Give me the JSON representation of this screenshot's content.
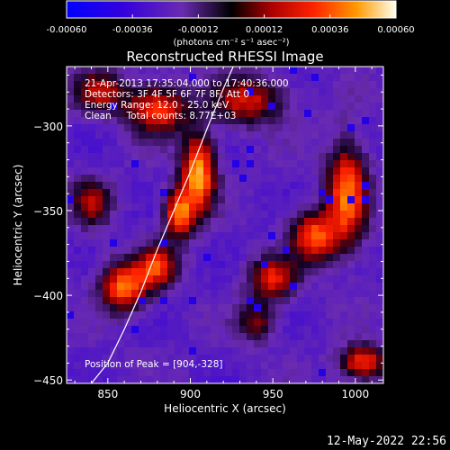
{
  "chart_data": {
    "type": "heatmap",
    "title": "Reconstructed RHESSI Image",
    "xlabel": "Heliocentric X (arcsec)",
    "ylabel": "Heliocentric Y (arcsec)",
    "xlim": [
      825,
      1017
    ],
    "ylim": [
      -452,
      -265
    ],
    "x_ticks": [
      850,
      900,
      950,
      1000
    ],
    "y_ticks": [
      -450,
      -400,
      -350,
      -300
    ],
    "colorbar": {
      "range": [
        -0.0006,
        0.0006
      ],
      "tick_values": [
        -0.0006,
        -0.00036,
        -0.00012,
        0.00012,
        0.00036,
        0.0006
      ],
      "tick_labels": [
        "-0.00060",
        "-0.00036",
        "-0.00012",
        "0.00012",
        "0.00036",
        "0.00060"
      ],
      "unit_label": "(photons cm⁻² s⁻¹ asec⁻²)"
    },
    "annotations": [
      "21-Apr-2013 17:35:04.000 to 17:40:36.000",
      "Detectors: 3F 4F 5F 6F 7F 8F, Att 0",
      "Energy Range: 12.0 - 25.0 keV",
      "Clean     Total counts: 8.77E+03"
    ],
    "peak_label": "Position of Peak = [904,-328]",
    "peak": [
      904,
      -328
    ],
    "limb_curve": [
      [
        840,
        -452
      ],
      [
        850,
        -440
      ],
      [
        860,
        -420
      ],
      [
        870,
        -398
      ],
      [
        880,
        -373
      ],
      [
        890,
        -350
      ],
      [
        900,
        -327
      ],
      [
        910,
        -302
      ],
      [
        920,
        -278
      ],
      [
        926,
        -265
      ]
    ],
    "hotspots": [
      {
        "x": 905,
        "y": -328,
        "sx": 10,
        "sy": 22,
        "amp": 1.0
      },
      {
        "x": 893,
        "y": -352,
        "sx": 9,
        "sy": 14,
        "amp": 0.85
      },
      {
        "x": 860,
        "y": -395,
        "sx": 14,
        "sy": 14,
        "amp": 0.85
      },
      {
        "x": 880,
        "y": -383,
        "sx": 12,
        "sy": 12,
        "amp": 0.7
      },
      {
        "x": 880,
        "y": -290,
        "sx": 18,
        "sy": 14,
        "amp": 0.75
      },
      {
        "x": 845,
        "y": -280,
        "sx": 16,
        "sy": 12,
        "amp": 0.55
      },
      {
        "x": 935,
        "y": -285,
        "sx": 22,
        "sy": 14,
        "amp": 0.6
      },
      {
        "x": 995,
        "y": -340,
        "sx": 12,
        "sy": 30,
        "amp": 0.85
      },
      {
        "x": 975,
        "y": -365,
        "sx": 14,
        "sy": 14,
        "amp": 0.8
      },
      {
        "x": 950,
        "y": -390,
        "sx": 14,
        "sy": 12,
        "amp": 0.65
      },
      {
        "x": 1005,
        "y": -440,
        "sx": 14,
        "sy": 10,
        "amp": 0.75
      },
      {
        "x": 840,
        "y": -345,
        "sx": 12,
        "sy": 14,
        "amp": 0.5
      },
      {
        "x": 940,
        "y": -415,
        "sx": 12,
        "sy": 12,
        "amp": 0.45
      }
    ]
  },
  "footer": {
    "date": "12-May-2022 22:56"
  }
}
